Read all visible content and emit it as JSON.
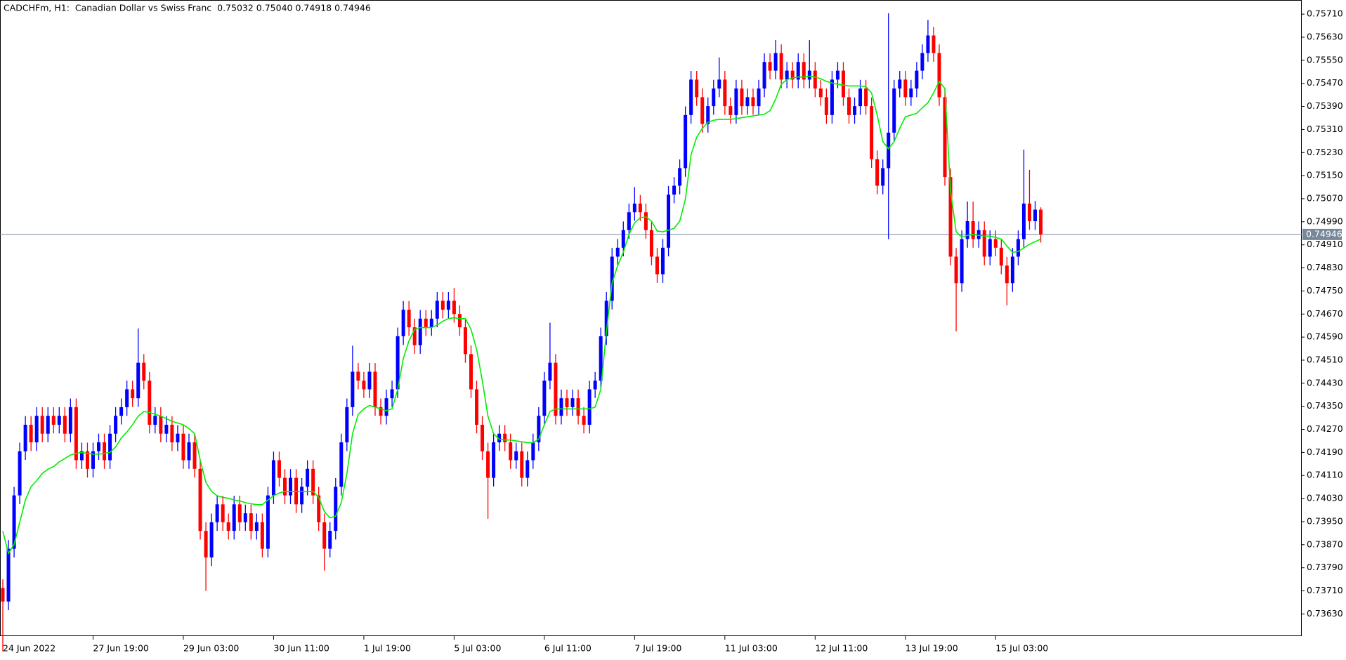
{
  "chart_data": {
    "type": "candlestick",
    "title": "CADCHFm, H1:  Canadian Dollar vs Swiss Franc  0.75032 0.75040 0.74918 0.74946",
    "up_color": "#0000ff",
    "down_color": "#ff0000",
    "categories": [
      "24 Jun 2022",
      null,
      null,
      null,
      null,
      null,
      null,
      null,
      null,
      null,
      null,
      null,
      null,
      null,
      null,
      null,
      "27 Jun 19:00",
      null,
      null,
      null,
      null,
      null,
      null,
      null,
      null,
      null,
      null,
      null,
      null,
      null,
      null,
      null,
      "29 Jun 03:00",
      null,
      null,
      null,
      null,
      null,
      null,
      null,
      null,
      null,
      null,
      null,
      null,
      null,
      null,
      null,
      "30 Jun 11:00",
      null,
      null,
      null,
      null,
      null,
      null,
      null,
      null,
      null,
      null,
      null,
      null,
      null,
      null,
      null,
      "1 Jul 19:00",
      null,
      null,
      null,
      null,
      null,
      null,
      null,
      null,
      null,
      null,
      null,
      null,
      null,
      null,
      null,
      "5 Jul 03:00",
      null,
      null,
      null,
      null,
      null,
      null,
      null,
      null,
      null,
      null,
      null,
      null,
      null,
      null,
      null,
      "6 Jul 11:00",
      null,
      null,
      null,
      null,
      null,
      null,
      null,
      null,
      null,
      null,
      null,
      null,
      null,
      null,
      null,
      "7 Jul 19:00",
      null,
      null,
      null,
      null,
      null,
      null,
      null,
      null,
      null,
      null,
      null,
      null,
      null,
      null,
      null,
      "11 Jul 03:00",
      null,
      null,
      null,
      null,
      null,
      null,
      null,
      null,
      null,
      null,
      null,
      null,
      null,
      null,
      null,
      "12 Jul 11:00",
      null,
      null,
      null,
      null,
      null,
      null,
      null,
      null,
      null,
      null,
      null,
      null,
      null,
      null,
      null,
      "13 Jul 19:00",
      null,
      null,
      null,
      null,
      null,
      null,
      null,
      null,
      null,
      null,
      null,
      null,
      null,
      null,
      null,
      "15 Jul 03:00",
      null,
      null,
      null,
      null,
      null,
      null,
      null,
      null
    ],
    "open": [
      0.7372,
      0.73673,
      0.73856,
      0.74041,
      0.74194,
      0.74286,
      0.74225,
      0.74317,
      0.74255,
      0.74317,
      0.74286,
      0.74317,
      0.74255,
      0.74347,
      0.74163,
      0.74194,
      0.74133,
      0.74194,
      0.74225,
      0.74163,
      0.74255,
      0.74317,
      0.74347,
      0.74409,
      0.74378,
      0.74501,
      0.74439,
      0.74286,
      0.74317,
      0.74255,
      0.74286,
      0.74225,
      0.74255,
      0.74163,
      0.74225,
      0.74133,
      0.73918,
      0.73826,
      0.73948,
      0.7401,
      0.73948,
      0.73918,
      0.7401,
      0.73948,
      0.73979,
      0.73918,
      0.73948,
      0.73856,
      0.74041,
      0.74163,
      0.74102,
      0.74041,
      0.74102,
      0.7401,
      0.74071,
      0.74133,
      0.74041,
      0.73948,
      0.73856,
      0.73918,
      0.74071,
      0.74225,
      0.74347,
      0.7447,
      0.74439,
      0.74409,
      0.7447,
      0.74347,
      0.74317,
      0.74378,
      0.74409,
      0.74593,
      0.74685,
      0.74624,
      0.74562,
      0.74654,
      0.74624,
      0.74654,
      0.74716,
      0.74685,
      0.74716,
      0.7467,
      0.74624,
      0.74531,
      0.74409,
      0.74286,
      0.74194,
      0.74102,
      0.74225,
      0.74255,
      0.74225,
      0.74163,
      0.74194,
      0.74102,
      0.74163,
      0.74225,
      0.74317,
      0.74439,
      0.74501,
      0.74317,
      0.74378,
      0.74347,
      0.74378,
      0.74317,
      0.74286,
      0.74409,
      0.74439,
      0.74593,
      0.74716,
      0.74869,
      0.749,
      0.74961,
      0.75023,
      0.75053,
      0.75023,
      0.74961,
      0.74869,
      0.74808,
      0.749,
      0.75084,
      0.75115,
      0.75176,
      0.7536,
      0.75483,
      0.75422,
      0.75329,
      0.75391,
      0.75452,
      0.75483,
      0.75391,
      0.7536,
      0.75452,
      0.75391,
      0.75422,
      0.75391,
      0.75452,
      0.75544,
      0.75514,
      0.75575,
      0.75483,
      0.75514,
      0.75483,
      0.75544,
      0.75483,
      0.75514,
      0.75452,
      0.75422,
      0.7536,
      0.75483,
      0.75514,
      0.75422,
      0.7536,
      0.75391,
      0.75452,
      0.75391,
      0.75207,
      0.75115,
      0.75176,
      0.75299,
      0.75452,
      0.75483,
      0.75422,
      0.75452,
      0.75514,
      0.75575,
      0.75636,
      0.75575,
      0.75422,
      0.75145,
      0.74869,
      0.74777,
      0.7493,
      0.74992,
      0.7493,
      0.74961,
      0.74869,
      0.7493,
      0.749,
      0.74838,
      0.74777,
      0.74869,
      0.7493,
      0.75053,
      0.74992,
      0.75032
    ],
    "high": [
      0.7375,
      0.73886,
      0.74071,
      0.74224,
      0.74316,
      0.74316,
      0.74347,
      0.74347,
      0.74347,
      0.74347,
      0.74347,
      0.74347,
      0.74377,
      0.74377,
      0.74224,
      0.74224,
      0.74224,
      0.74255,
      0.74255,
      0.74285,
      0.74347,
      0.74377,
      0.74439,
      0.74439,
      0.7462,
      0.74531,
      0.74469,
      0.74347,
      0.74347,
      0.74316,
      0.74316,
      0.74285,
      0.74285,
      0.74255,
      0.74255,
      0.74163,
      0.73948,
      0.73978,
      0.7404,
      0.7404,
      0.73978,
      0.7404,
      0.7404,
      0.74009,
      0.74009,
      0.73978,
      0.73978,
      0.74071,
      0.74193,
      0.74193,
      0.74132,
      0.74132,
      0.74132,
      0.74101,
      0.74163,
      0.74163,
      0.74071,
      0.73978,
      0.73948,
      0.74101,
      0.74255,
      0.74377,
      0.7456,
      0.745,
      0.74469,
      0.745,
      0.745,
      0.74377,
      0.74408,
      0.74439,
      0.74623,
      0.74715,
      0.74715,
      0.74654,
      0.74684,
      0.74684,
      0.74684,
      0.74746,
      0.74746,
      0.74746,
      0.7476,
      0.747,
      0.74654,
      0.74561,
      0.74439,
      0.74316,
      0.74224,
      0.74255,
      0.74285,
      0.74285,
      0.74255,
      0.74224,
      0.74224,
      0.74193,
      0.74255,
      0.74347,
      0.74469,
      0.7464,
      0.74531,
      0.74408,
      0.74408,
      0.74408,
      0.74408,
      0.74347,
      0.74439,
      0.74469,
      0.74623,
      0.74746,
      0.74899,
      0.7493,
      0.74991,
      0.75053,
      0.7511,
      0.75083,
      0.75053,
      0.74991,
      0.74899,
      0.7493,
      0.75114,
      0.75145,
      0.75206,
      0.7539,
      0.75513,
      0.75513,
      0.75452,
      0.75421,
      0.75482,
      0.7556,
      0.75513,
      0.75421,
      0.75482,
      0.75482,
      0.75452,
      0.75452,
      0.75482,
      0.75574,
      0.75574,
      0.7562,
      0.75605,
      0.75544,
      0.75544,
      0.75574,
      0.75574,
      0.7562,
      0.75544,
      0.75482,
      0.75452,
      0.75513,
      0.75544,
      0.75544,
      0.75452,
      0.75421,
      0.75482,
      0.75482,
      0.75421,
      0.75237,
      0.75206,
      0.75713,
      0.75482,
      0.75513,
      0.75513,
      0.75482,
      0.75544,
      0.75605,
      0.7569,
      0.75666,
      0.75605,
      0.75452,
      0.75175,
      0.74899,
      0.7496,
      0.7506,
      0.7506,
      0.74991,
      0.74991,
      0.7496,
      0.7496,
      0.7493,
      0.74868,
      0.74899,
      0.7496,
      0.7524,
      0.7517,
      0.75062,
      0.7504
    ],
    "low": [
      0.735,
      0.73643,
      0.73826,
      0.74011,
      0.74164,
      0.74195,
      0.74195,
      0.74225,
      0.74225,
      0.74256,
      0.74256,
      0.74225,
      0.74225,
      0.74133,
      0.74133,
      0.74103,
      0.74103,
      0.74164,
      0.74133,
      0.74133,
      0.74225,
      0.74287,
      0.74317,
      0.74348,
      0.74348,
      0.74409,
      0.74256,
      0.74256,
      0.74225,
      0.74225,
      0.74195,
      0.74195,
      0.74133,
      0.74133,
      0.74103,
      0.73888,
      0.7371,
      0.73796,
      0.73918,
      0.73918,
      0.73888,
      0.73888,
      0.73918,
      0.73918,
      0.73888,
      0.73888,
      0.73826,
      0.73826,
      0.74011,
      0.74072,
      0.74011,
      0.74011,
      0.7398,
      0.7398,
      0.74041,
      0.74011,
      0.73918,
      0.7378,
      0.73826,
      0.73888,
      0.74041,
      0.74195,
      0.74317,
      0.74409,
      0.74379,
      0.74379,
      0.74317,
      0.74287,
      0.74287,
      0.74348,
      0.74379,
      0.74563,
      0.74594,
      0.74532,
      0.74532,
      0.74594,
      0.74594,
      0.74624,
      0.74655,
      0.74655,
      0.7464,
      0.74594,
      0.74501,
      0.74379,
      0.74256,
      0.74164,
      0.7396,
      0.74072,
      0.74195,
      0.74195,
      0.74133,
      0.74133,
      0.74072,
      0.74072,
      0.74133,
      0.74195,
      0.74287,
      0.74409,
      0.74287,
      0.74287,
      0.74317,
      0.74317,
      0.74287,
      0.74256,
      0.74256,
      0.74379,
      0.74409,
      0.74563,
      0.74686,
      0.74839,
      0.7487,
      0.74931,
      0.74993,
      0.74993,
      0.74931,
      0.74839,
      0.74778,
      0.74778,
      0.7487,
      0.75054,
      0.75085,
      0.75146,
      0.7533,
      0.75392,
      0.75299,
      0.75299,
      0.75361,
      0.75422,
      0.75361,
      0.7533,
      0.7533,
      0.75361,
      0.75361,
      0.75361,
      0.75361,
      0.75422,
      0.75484,
      0.75484,
      0.75453,
      0.75453,
      0.75453,
      0.75453,
      0.75453,
      0.75453,
      0.75422,
      0.75392,
      0.7533,
      0.7533,
      0.75453,
      0.75392,
      0.7533,
      0.7533,
      0.75361,
      0.75361,
      0.75177,
      0.75085,
      0.75085,
      0.7493,
      0.75269,
      0.75422,
      0.75392,
      0.75392,
      0.75422,
      0.75484,
      0.75545,
      0.75545,
      0.75392,
      0.75115,
      0.74839,
      0.7461,
      0.74747,
      0.749,
      0.749,
      0.749,
      0.74839,
      0.74839,
      0.7487,
      0.74808,
      0.747,
      0.74747,
      0.74839,
      0.749,
      0.74962,
      0.74962,
      0.74918
    ],
    "close": [
      0.73673,
      0.73856,
      0.74041,
      0.74194,
      0.74286,
      0.74225,
      0.74317,
      0.74255,
      0.74317,
      0.74286,
      0.74317,
      0.74255,
      0.74347,
      0.74163,
      0.74194,
      0.74133,
      0.74194,
      0.74225,
      0.74163,
      0.74255,
      0.74317,
      0.74347,
      0.74409,
      0.74378,
      0.74501,
      0.74439,
      0.74286,
      0.74317,
      0.74255,
      0.74286,
      0.74225,
      0.74255,
      0.74163,
      0.74225,
      0.74133,
      0.73918,
      0.73826,
      0.73948,
      0.7401,
      0.73948,
      0.73918,
      0.7401,
      0.73948,
      0.73979,
      0.73918,
      0.73948,
      0.73856,
      0.74041,
      0.74163,
      0.74102,
      0.74041,
      0.74102,
      0.7401,
      0.74071,
      0.74133,
      0.74041,
      0.73948,
      0.73856,
      0.73918,
      0.74071,
      0.74225,
      0.74347,
      0.7447,
      0.74439,
      0.74409,
      0.7447,
      0.74347,
      0.74317,
      0.74378,
      0.74409,
      0.74593,
      0.74685,
      0.74624,
      0.74562,
      0.74654,
      0.74624,
      0.74654,
      0.74716,
      0.74685,
      0.74716,
      0.7467,
      0.74624,
      0.74531,
      0.74409,
      0.74286,
      0.74194,
      0.74102,
      0.74225,
      0.74255,
      0.74225,
      0.74163,
      0.74194,
      0.74102,
      0.74163,
      0.74225,
      0.74317,
      0.74439,
      0.74501,
      0.74317,
      0.74378,
      0.74347,
      0.74378,
      0.74317,
      0.74286,
      0.74409,
      0.74439,
      0.74593,
      0.74716,
      0.74869,
      0.749,
      0.74961,
      0.75023,
      0.75053,
      0.75023,
      0.74961,
      0.74869,
      0.74808,
      0.749,
      0.75084,
      0.75115,
      0.75176,
      0.7536,
      0.75483,
      0.75422,
      0.75329,
      0.75391,
      0.75452,
      0.75483,
      0.75391,
      0.7536,
      0.75452,
      0.75391,
      0.75422,
      0.75391,
      0.75452,
      0.75544,
      0.75514,
      0.75575,
      0.75483,
      0.75514,
      0.75483,
      0.75544,
      0.75483,
      0.75514,
      0.75452,
      0.75422,
      0.7536,
      0.75483,
      0.75514,
      0.75422,
      0.7536,
      0.75391,
      0.75452,
      0.75391,
      0.75207,
      0.75115,
      0.75176,
      0.75299,
      0.75452,
      0.75483,
      0.75422,
      0.75452,
      0.75514,
      0.75575,
      0.75636,
      0.75575,
      0.75422,
      0.75145,
      0.74869,
      0.74777,
      0.7493,
      0.74992,
      0.7493,
      0.74961,
      0.74869,
      0.7493,
      0.749,
      0.74838,
      0.74777,
      0.74869,
      0.7493,
      0.75053,
      0.74992,
      0.75032,
      0.74946
    ],
    "overlays": [
      {
        "type": "line",
        "color": "#00ee00",
        "values": [
          0.73917,
          0.7384,
          0.73871,
          0.73948,
          0.74025,
          0.74071,
          0.74092,
          0.74117,
          0.74132,
          0.74141,
          0.74157,
          0.74169,
          0.74181,
          0.74187,
          0.7419,
          0.74187,
          0.74184,
          0.74184,
          0.74187,
          0.7419,
          0.74209,
          0.7424,
          0.74261,
          0.74286,
          0.74316,
          0.74332,
          0.74329,
          0.74322,
          0.74316,
          0.74307,
          0.74298,
          0.74292,
          0.74286,
          0.74273,
          0.74255,
          0.74163,
          0.74086,
          0.74055,
          0.7404,
          0.74034,
          0.74031,
          0.74025,
          0.74022,
          0.74016,
          0.74012,
          0.74009,
          0.74009,
          0.74025,
          0.7404,
          0.74049,
          0.74055,
          0.74055,
          0.74055,
          0.74055,
          0.74055,
          0.74055,
          0.74034,
          0.73985,
          0.73963,
          0.73969,
          0.74016,
          0.74117,
          0.74255,
          0.74322,
          0.74341,
          0.74353,
          0.74347,
          0.74341,
          0.74335,
          0.74341,
          0.74408,
          0.74516,
          0.74577,
          0.74617,
          0.74623,
          0.74623,
          0.74623,
          0.74632,
          0.74645,
          0.74654,
          0.74657,
          0.74654,
          0.74654,
          0.74617,
          0.74547,
          0.74439,
          0.74316,
          0.74255,
          0.74236,
          0.74233,
          0.74233,
          0.7423,
          0.74227,
          0.74224,
          0.74224,
          0.74236,
          0.74286,
          0.74332,
          0.74341,
          0.74341,
          0.74341,
          0.74341,
          0.74341,
          0.74341,
          0.74341,
          0.74347,
          0.74408,
          0.74608,
          0.74777,
          0.74838,
          0.74884,
          0.74946,
          0.74986,
          0.75004,
          0.75007,
          0.74992,
          0.74958,
          0.74955,
          0.74961,
          0.74967,
          0.74992,
          0.75068,
          0.75222,
          0.75283,
          0.75314,
          0.75335,
          0.75342,
          0.75345,
          0.75345,
          0.75345,
          0.75348,
          0.75351,
          0.75354,
          0.75357,
          0.7536,
          0.75363,
          0.75375,
          0.75415,
          0.75467,
          0.75483,
          0.75489,
          0.75492,
          0.75492,
          0.75495,
          0.75492,
          0.75486,
          0.75477,
          0.75471,
          0.75467,
          0.75464,
          0.75461,
          0.75461,
          0.75461,
          0.75458,
          0.75437,
          0.7536,
          0.75268,
          0.75243,
          0.75268,
          0.75314,
          0.75354,
          0.7536,
          0.75366,
          0.75385,
          0.75403,
          0.75437,
          0.75477,
          0.75452,
          0.75099,
          0.74955,
          0.74936,
          0.74943,
          0.74946,
          0.74943,
          0.7494,
          0.7494,
          0.74936,
          0.7493,
          0.74906,
          0.74884,
          0.74887,
          0.74899,
          0.74912,
          0.74921,
          0.7493
        ]
      }
    ],
    "current_price": 0.74946,
    "current_price_color": "#778899",
    "ylim": [
      0.73553,
      0.75759
    ],
    "yticks": [
      {
        "value": 0.7363,
        "label": "0.73630"
      },
      {
        "value": 0.7371,
        "label": "0.73710"
      },
      {
        "value": 0.7379,
        "label": "0.73790"
      },
      {
        "value": 0.7387,
        "label": "0.73870"
      },
      {
        "value": 0.7395,
        "label": "0.73950"
      },
      {
        "value": 0.7403,
        "label": "0.74030"
      },
      {
        "value": 0.7411,
        "label": "0.74110"
      },
      {
        "value": 0.7419,
        "label": "0.74190"
      },
      {
        "value": 0.7427,
        "label": "0.74270"
      },
      {
        "value": 0.7435,
        "label": "0.74350"
      },
      {
        "value": 0.7443,
        "label": "0.74430"
      },
      {
        "value": 0.7451,
        "label": "0.74510"
      },
      {
        "value": 0.7459,
        "label": "0.74590"
      },
      {
        "value": 0.7467,
        "label": "0.74670"
      },
      {
        "value": 0.7475,
        "label": "0.74750"
      },
      {
        "value": 0.7483,
        "label": "0.74830"
      },
      {
        "value": 0.7491,
        "label": "0.74910"
      },
      {
        "value": 0.7499,
        "label": "0.74990"
      },
      {
        "value": 0.7507,
        "label": "0.75070"
      },
      {
        "value": 0.7515,
        "label": "0.75150"
      },
      {
        "value": 0.7523,
        "label": "0.75230"
      },
      {
        "value": 0.7531,
        "label": "0.75310"
      },
      {
        "value": 0.7539,
        "label": "0.75390"
      },
      {
        "value": 0.7547,
        "label": "0.75470"
      },
      {
        "value": 0.7555,
        "label": "0.75550"
      },
      {
        "value": 0.7563,
        "label": "0.75630"
      },
      {
        "value": 0.7571,
        "label": "0.75710"
      }
    ]
  }
}
